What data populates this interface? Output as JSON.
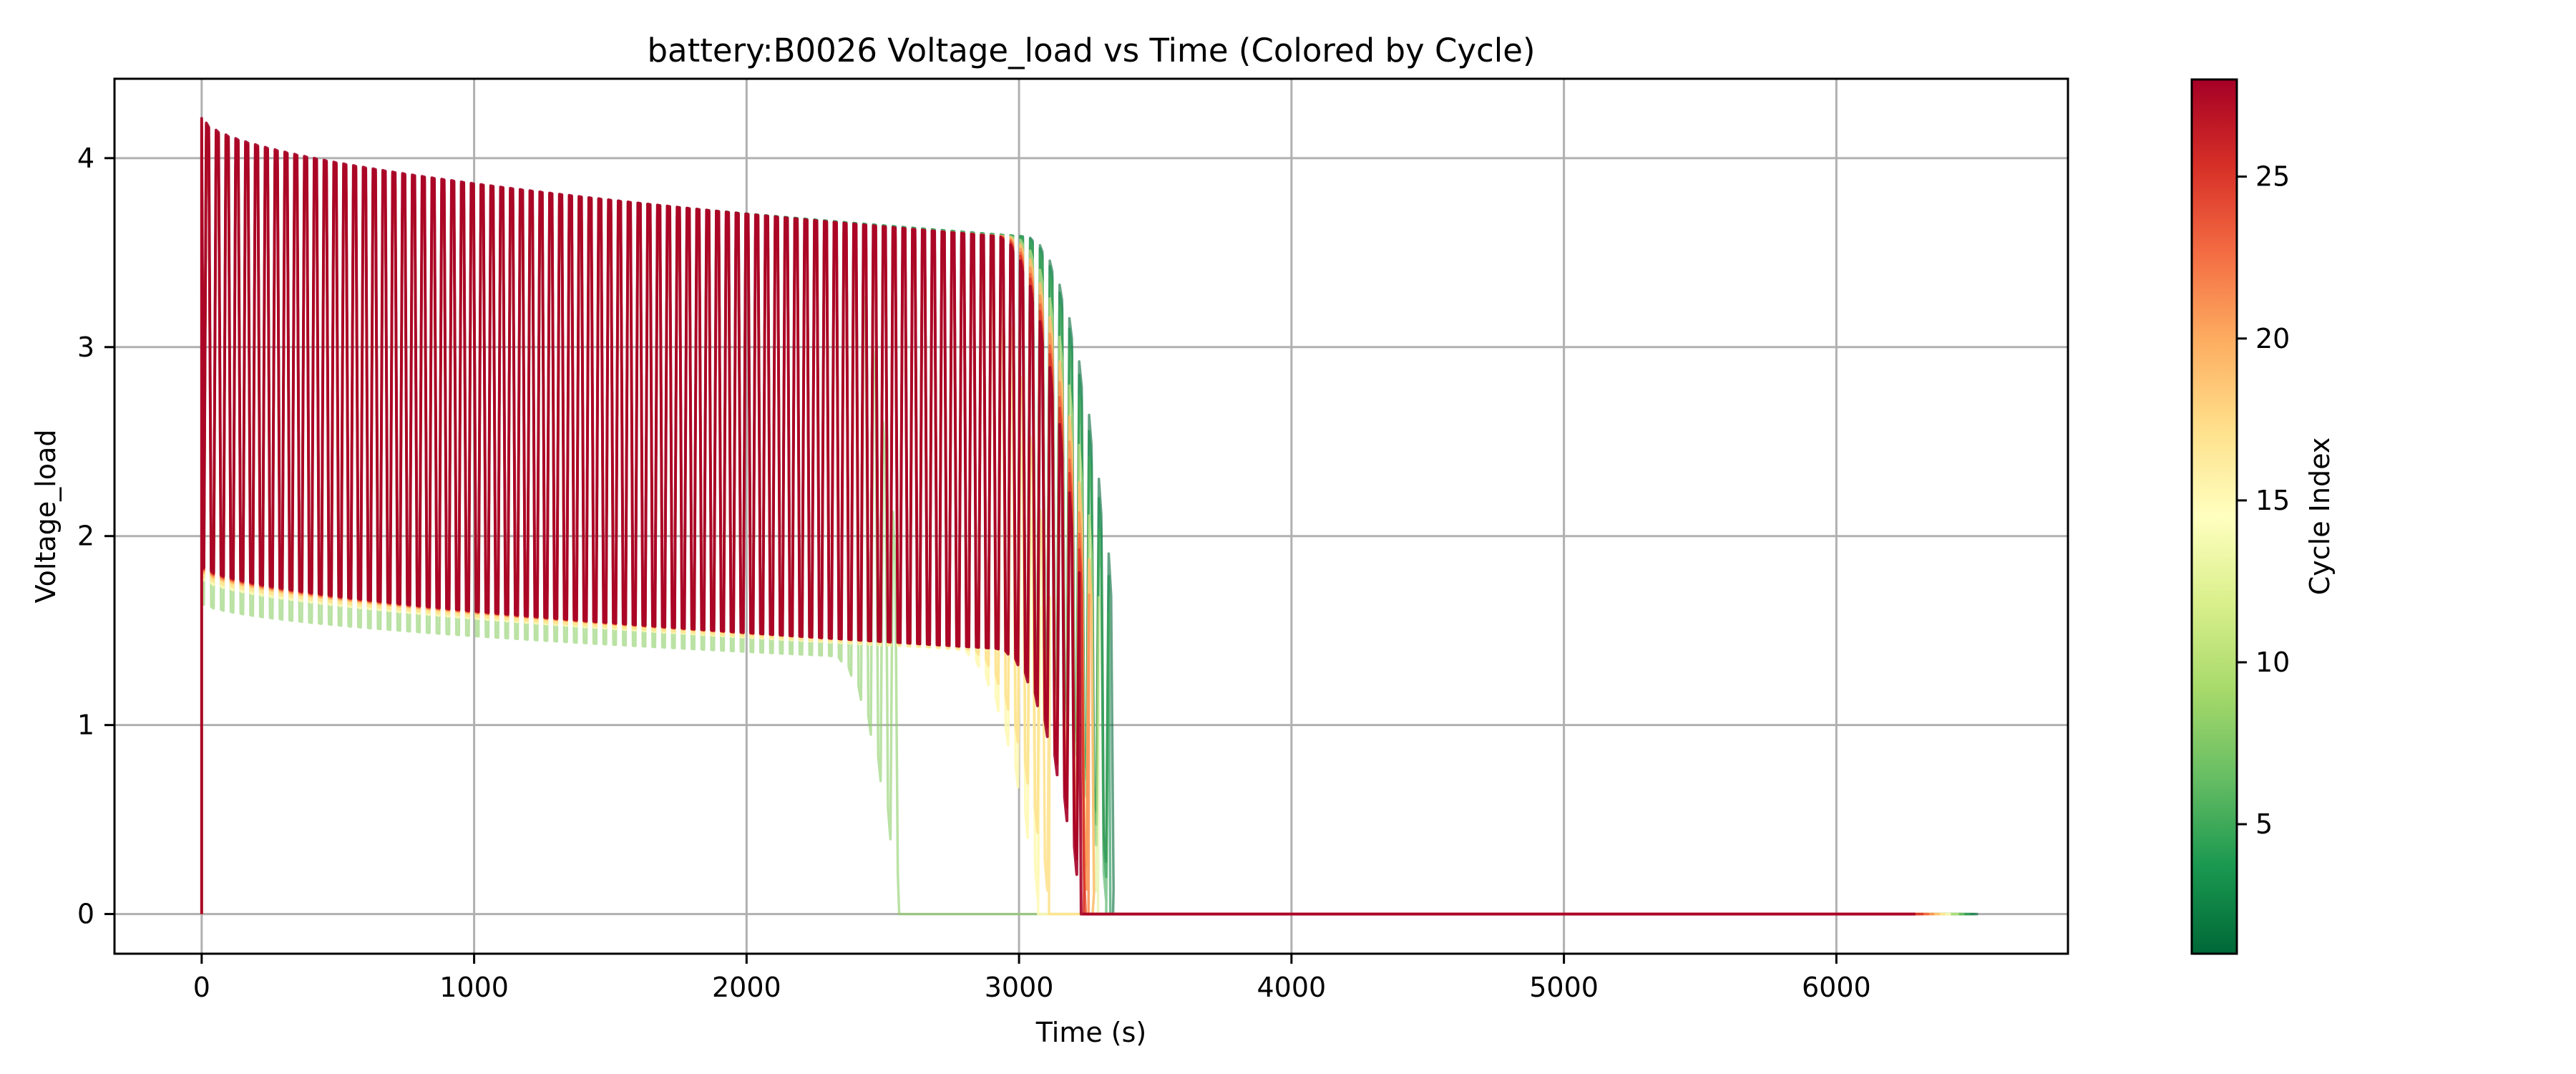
{
  "chart_data": {
    "type": "line",
    "title": "battery:B0026 Voltage_load vs Time (Colored by Cycle)",
    "xlabel": "Time (s)",
    "ylabel": "Voltage_load",
    "xlim": [
      -320,
      6850
    ],
    "ylim": [
      -0.21,
      4.42
    ],
    "xticks": [
      0,
      1000,
      2000,
      3000,
      4000,
      5000,
      6000
    ],
    "yticks": [
      0,
      1,
      2,
      3,
      4
    ],
    "grid": true,
    "colormap": "RdYlGn_r",
    "colorbar": {
      "label": "Cycle Index",
      "min": 1,
      "max": 28,
      "ticks": [
        5,
        10,
        15,
        20,
        25
      ]
    },
    "series_summary": [
      {
        "cycle": 1,
        "discharge_end_s": 3345,
        "max_time_s": 6520,
        "upper_start_v": 4.18,
        "upper_knee_v": 3.55,
        "lower_start_v": 1.85,
        "lower_knee_v": 1.38
      },
      {
        "cycle": 3,
        "discharge_end_s": 3335,
        "max_time_s": 6510,
        "upper_start_v": 4.18,
        "upper_knee_v": 3.55,
        "lower_start_v": 1.85,
        "lower_knee_v": 1.38
      },
      {
        "cycle": 5,
        "discharge_end_s": 3320,
        "max_time_s": 6490,
        "upper_start_v": 4.18,
        "upper_knee_v": 3.55,
        "lower_start_v": 1.84,
        "lower_knee_v": 1.38
      },
      {
        "cycle": 8,
        "discharge_end_s": 2560,
        "max_time_s": 6470,
        "upper_start_v": 4.17,
        "upper_knee_v": 3.6,
        "lower_start_v": 1.65,
        "lower_knee_v": 1.35
      },
      {
        "cycle": 12,
        "discharge_end_s": 3290,
        "max_time_s": 6450,
        "upper_start_v": 4.17,
        "upper_knee_v": 3.55,
        "lower_start_v": 1.8,
        "lower_knee_v": 1.38
      },
      {
        "cycle": 15,
        "discharge_end_s": 3070,
        "max_time_s": 6420,
        "upper_start_v": 4.17,
        "upper_knee_v": 3.55,
        "lower_start_v": 1.78,
        "lower_knee_v": 1.38
      },
      {
        "cycle": 17,
        "discharge_end_s": 3110,
        "max_time_s": 6400,
        "upper_start_v": 4.17,
        "upper_knee_v": 3.55,
        "lower_start_v": 1.8,
        "lower_knee_v": 1.38
      },
      {
        "cycle": 19,
        "discharge_end_s": 3270,
        "max_time_s": 6380,
        "upper_start_v": 4.18,
        "upper_knee_v": 3.55,
        "lower_start_v": 1.82,
        "lower_knee_v": 1.38
      },
      {
        "cycle": 21,
        "discharge_end_s": 3255,
        "max_time_s": 6360,
        "upper_start_v": 4.18,
        "upper_knee_v": 3.55,
        "lower_start_v": 1.83,
        "lower_knee_v": 1.38
      },
      {
        "cycle": 23,
        "discharge_end_s": 3245,
        "max_time_s": 6340,
        "upper_start_v": 4.19,
        "upper_knee_v": 3.55,
        "lower_start_v": 1.84,
        "lower_knee_v": 1.38
      },
      {
        "cycle": 25,
        "discharge_end_s": 3238,
        "max_time_s": 6320,
        "upper_start_v": 4.2,
        "upper_knee_v": 3.55,
        "lower_start_v": 1.84,
        "lower_knee_v": 1.38
      },
      {
        "cycle": 28,
        "discharge_end_s": 3228,
        "max_time_s": 6290,
        "upper_start_v": 4.21,
        "upper_knee_v": 3.55,
        "lower_start_v": 1.85,
        "lower_knee_v": 1.38
      }
    ]
  }
}
